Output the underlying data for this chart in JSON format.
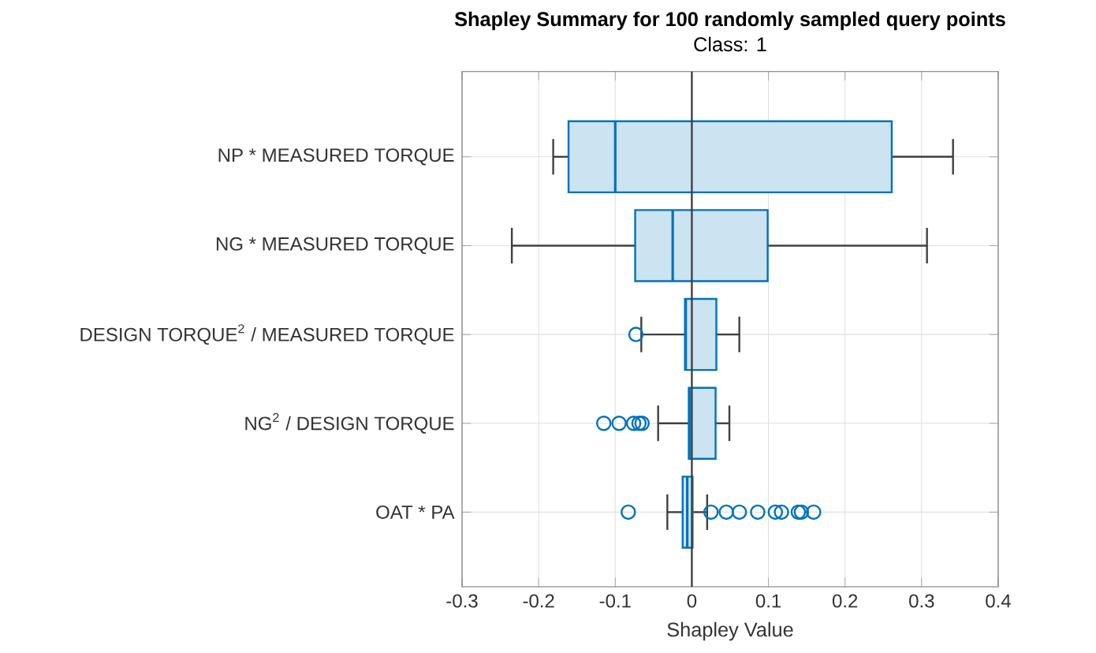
{
  "chart_data": {
    "type": "box",
    "orientation": "horizontal",
    "title": "Shapley Summary for 100 randomly sampled query points",
    "subtitle": "Class: 1",
    "xlabel": "Shapley Value",
    "categories": [
      "NP * MEASURED TORQUE",
      "NG * MEASURED TORQUE",
      "DESIGN TORQUE$^{2}$ / MEASURED TORQUE",
      "NG$^{2}$ / DESIGN TORQUE",
      "OAT * PA"
    ],
    "color": "#0072bd",
    "boxes": [
      {
        "low": -0.181,
        "q1": -0.161,
        "median": -0.1,
        "q3": 0.261,
        "high": 0.341
      },
      {
        "low": -0.235,
        "q1": -0.074,
        "median": -0.025,
        "q3": 0.099,
        "high": 0.307
      },
      {
        "low": -0.066,
        "q1": -0.009,
        "median": -0.008,
        "q3": 0.032,
        "high": 0.062,
        "outliers": [
          -0.073
        ]
      },
      {
        "low": -0.044,
        "q1": -0.004,
        "median": -0.003,
        "q3": 0.031,
        "high": 0.049,
        "outliers": [
          -0.115,
          -0.095,
          -0.076,
          -0.069,
          -0.065
        ]
      },
      {
        "low": -0.032,
        "q1": -0.012,
        "median": -0.006,
        "q3": 0.001,
        "high": 0.02,
        "outliers": [
          -0.083,
          0.025,
          0.045,
          0.062,
          0.086,
          0.109,
          0.117,
          0.139,
          0.143,
          0.159
        ]
      }
    ],
    "xlim": [
      -0.3,
      0.4
    ],
    "xticks": [
      -0.3,
      -0.2,
      -0.1,
      0,
      0.1,
      0.2,
      0.3,
      0.4
    ],
    "grid": true,
    "ref_lines": [
      {
        "axis": "x",
        "value": 0,
        "color": "#404040"
      }
    ]
  }
}
